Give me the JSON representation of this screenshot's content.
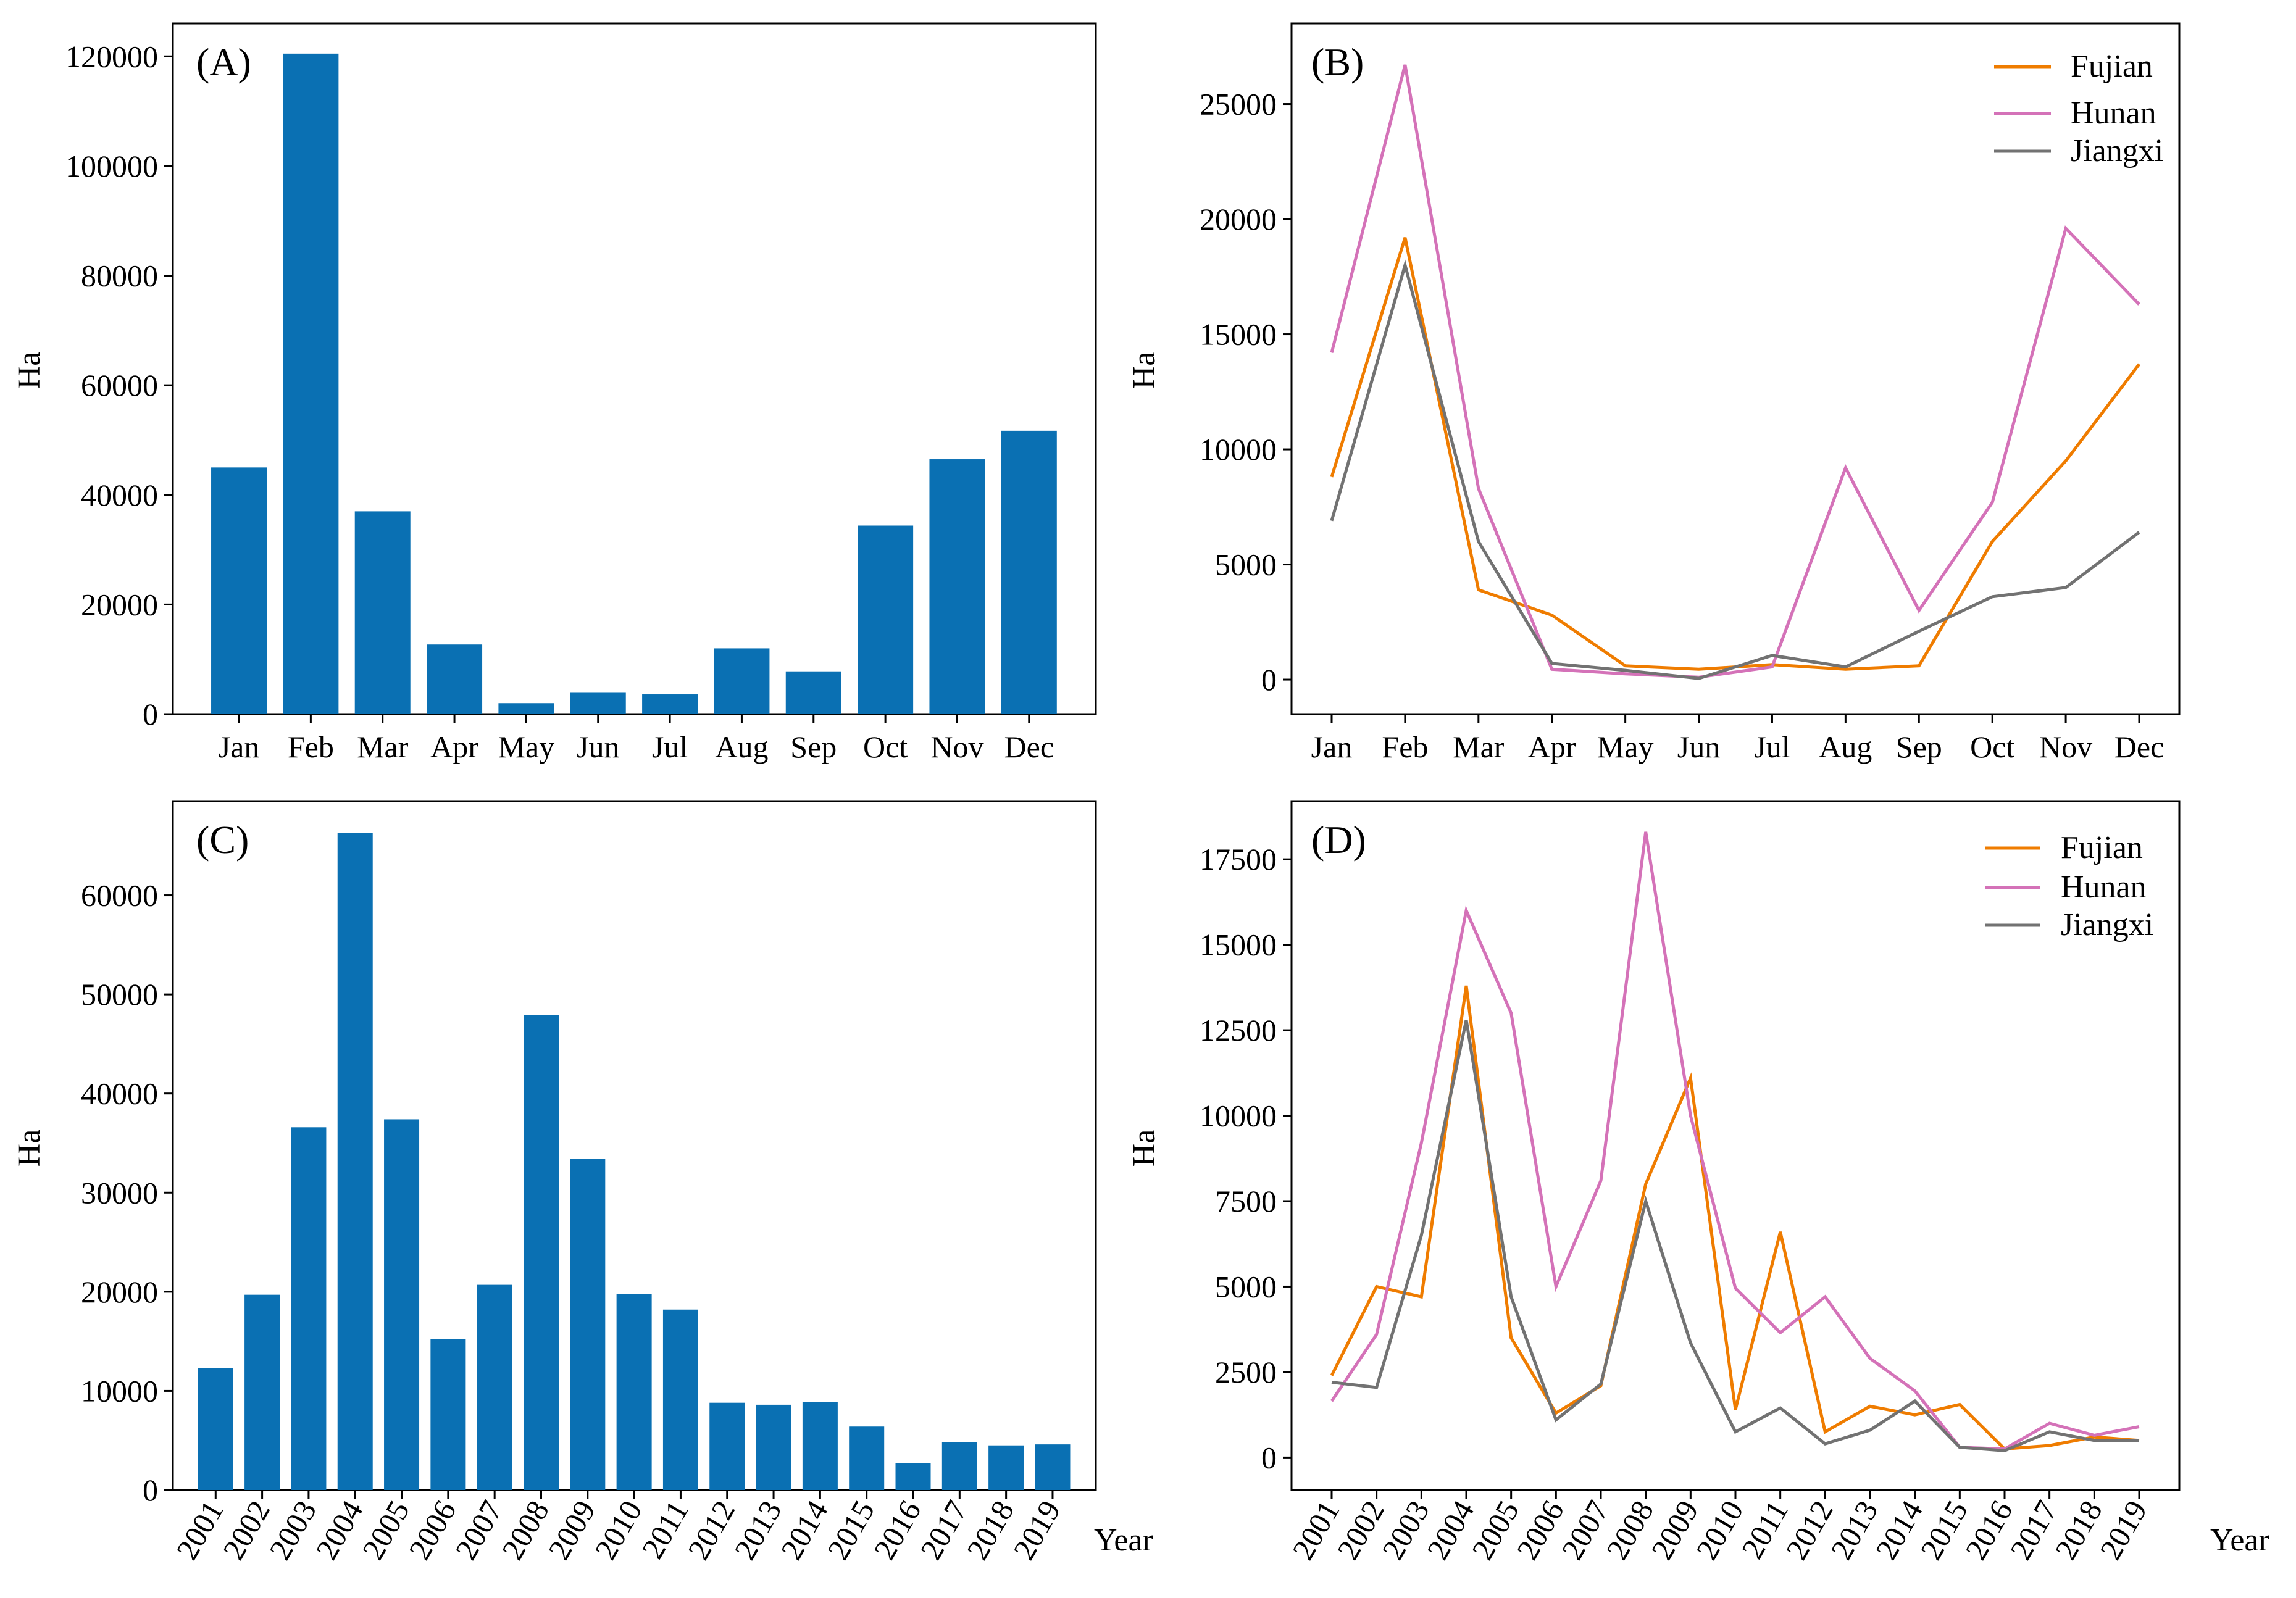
{
  "colors": {
    "bar": "#0a70b3",
    "fujian": "#ef7c00",
    "hunan": "#d472b8",
    "jiangxi": "#727272"
  },
  "chart_data": [
    {
      "id": "A",
      "type": "bar",
      "panel_label": "(A)",
      "ylabel": "Ha",
      "xlabel": "",
      "categories": [
        "Jan",
        "Feb",
        "Mar",
        "Apr",
        "May",
        "Jun",
        "Jul",
        "Aug",
        "Sep",
        "Oct",
        "Nov",
        "Dec"
      ],
      "values": [
        45000,
        120500,
        37000,
        12700,
        2000,
        4000,
        3600,
        12000,
        7800,
        34400,
        46500,
        51700
      ],
      "ylim": [
        0,
        126000
      ],
      "yticks": [
        0,
        20000,
        40000,
        60000,
        80000,
        100000,
        120000
      ],
      "grid": false
    },
    {
      "id": "B",
      "type": "line",
      "panel_label": "(B)",
      "ylabel": "Ha",
      "xlabel": "",
      "categories": [
        "Jan",
        "Feb",
        "Mar",
        "Apr",
        "May",
        "Jun",
        "Jul",
        "Aug",
        "Sep",
        "Oct",
        "Nov",
        "Dec"
      ],
      "series": [
        {
          "name": "Fujian",
          "color_key": "fujian",
          "values": [
            8800,
            19200,
            3900,
            2800,
            600,
            450,
            650,
            450,
            600,
            6000,
            9500,
            13700
          ]
        },
        {
          "name": "Hunan",
          "color_key": "hunan",
          "values": [
            14200,
            26700,
            8300,
            450,
            250,
            100,
            550,
            9200,
            3000,
            7700,
            19600,
            16300
          ]
        },
        {
          "name": "Jiangxi",
          "color_key": "jiangxi",
          "values": [
            6900,
            18000,
            6000,
            700,
            400,
            50,
            1050,
            550,
            2100,
            3600,
            4000,
            6400
          ]
        }
      ],
      "ylim": [
        -1500,
        28500
      ],
      "yticks": [
        0,
        5000,
        10000,
        15000,
        20000,
        25000
      ],
      "legend": "top-right",
      "grid": false
    },
    {
      "id": "C",
      "type": "bar",
      "panel_label": "(C)",
      "ylabel": "Ha",
      "xlabel": "Year",
      "categories": [
        "2001",
        "2002",
        "2003",
        "2004",
        "2005",
        "2006",
        "2007",
        "2008",
        "2009",
        "2010",
        "2011",
        "2012",
        "2013",
        "2014",
        "2015",
        "2016",
        "2017",
        "2018",
        "2019"
      ],
      "values": [
        12300,
        19700,
        36600,
        66300,
        37400,
        15200,
        20700,
        47900,
        33400,
        19800,
        18200,
        8800,
        8600,
        8900,
        6400,
        2700,
        4800,
        4500,
        4600
      ],
      "ylim": [
        0,
        69500
      ],
      "yticks": [
        0,
        10000,
        20000,
        30000,
        40000,
        50000,
        60000
      ],
      "grid": false
    },
    {
      "id": "D",
      "type": "line",
      "panel_label": "(D)",
      "ylabel": "Ha",
      "xlabel": "Year",
      "categories": [
        "2001",
        "2002",
        "2003",
        "2004",
        "2005",
        "2006",
        "2007",
        "2008",
        "2009",
        "2010",
        "2011",
        "2012",
        "2013",
        "2014",
        "2015",
        "2016",
        "2017",
        "2018",
        "2019"
      ],
      "series": [
        {
          "name": "Fujian",
          "color_key": "fujian",
          "values": [
            2400,
            5000,
            4700,
            13800,
            3500,
            1300,
            2100,
            8000,
            11100,
            1400,
            6600,
            750,
            1500,
            1250,
            1550,
            250,
            350,
            600,
            500
          ]
        },
        {
          "name": "Hunan",
          "color_key": "hunan",
          "values": [
            1650,
            3600,
            9200,
            16000,
            13000,
            5000,
            8100,
            18300,
            10000,
            4950,
            3650,
            4700,
            2900,
            1950,
            300,
            250,
            1000,
            650,
            900
          ]
        },
        {
          "name": "Jiangxi",
          "color_key": "jiangxi",
          "values": [
            2200,
            2050,
            6500,
            12800,
            4700,
            1100,
            2150,
            7500,
            3350,
            750,
            1450,
            400,
            800,
            1650,
            300,
            200,
            750,
            500,
            500
          ]
        }
      ],
      "ylim": [
        -950,
        19200
      ],
      "yticks": [
        0,
        2500,
        5000,
        7500,
        10000,
        12500,
        15000,
        17500
      ],
      "legend": "top-right",
      "grid": false
    }
  ]
}
